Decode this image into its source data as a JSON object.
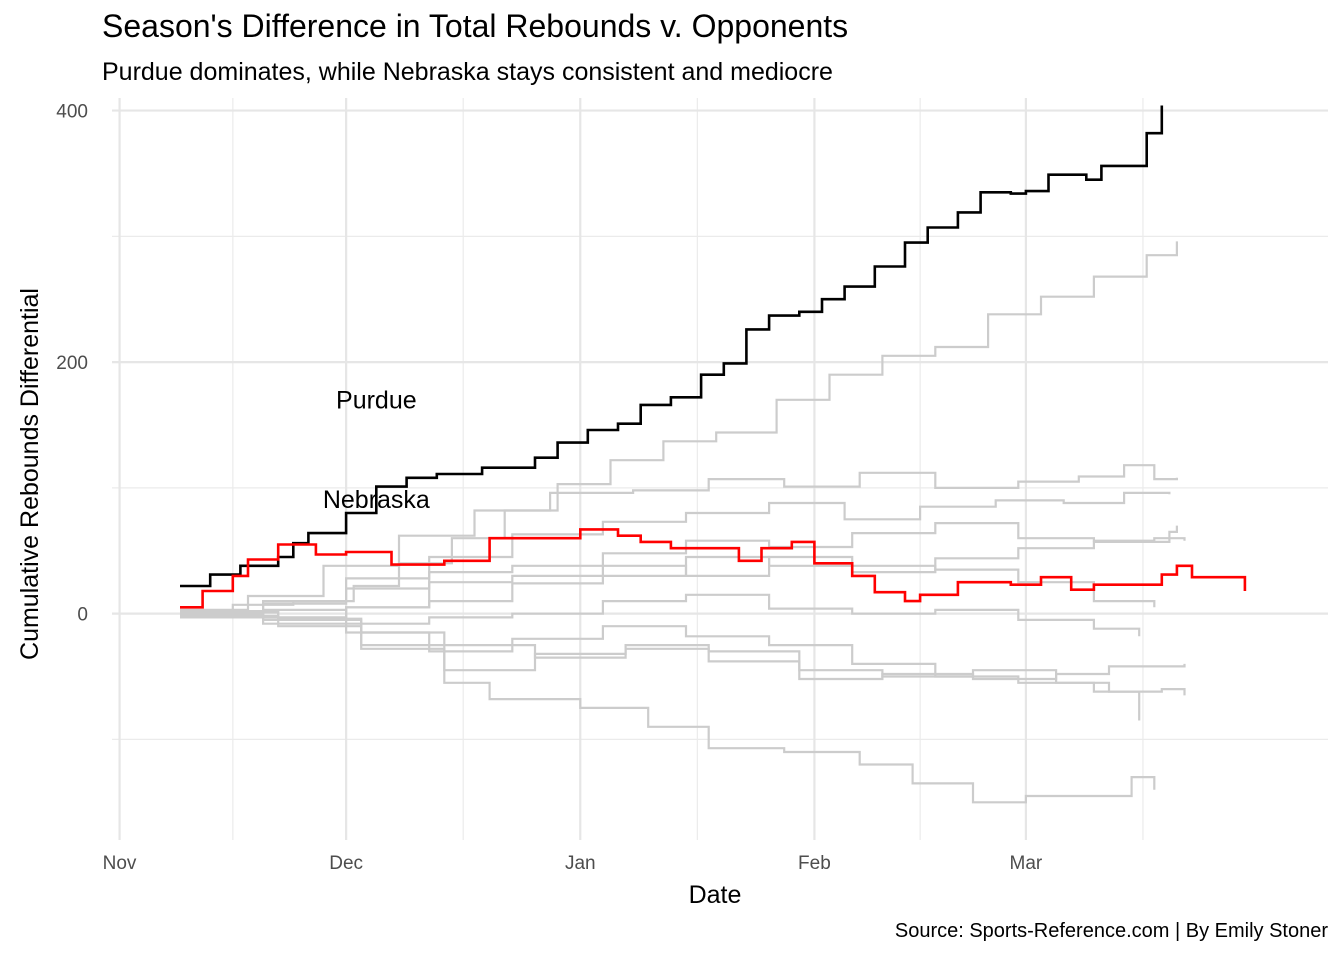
{
  "chart_data": {
    "type": "line",
    "title": "Season's Difference in Total Rebounds v. Opponents",
    "subtitle": "Purdue dominates, while Nebraska stays consistent and mediocre",
    "caption": "Source: Sports-Reference.com | By Emily Stoner",
    "xlabel": "Date",
    "ylabel": "Cumulative Rebounds Differential",
    "x_ticks": [
      "Nov",
      "Dec",
      "Jan",
      "Feb",
      "Mar"
    ],
    "y_ticks": [
      0,
      200,
      400
    ],
    "xlim": [
      "2021-10-31",
      "2022-04-10"
    ],
    "ylim": [
      -180,
      410
    ],
    "grid": true,
    "legend": "none",
    "annotations": [
      {
        "text": "Purdue",
        "x": "2021-12-05",
        "y": 163
      },
      {
        "text": "Nebraska",
        "x": "2021-12-05",
        "y": 84
      }
    ],
    "colors": {
      "Purdue": "#000000",
      "Nebraska": "#ff0000",
      "Other teams": "#cccccc"
    },
    "series": [
      {
        "name": "Purdue",
        "color": "#000000",
        "highlight": true,
        "points": [
          [
            "2021-11-09",
            22
          ],
          [
            "2021-11-13",
            31
          ],
          [
            "2021-11-17",
            38
          ],
          [
            "2021-11-22",
            45
          ],
          [
            "2021-11-24",
            56
          ],
          [
            "2021-11-26",
            64
          ],
          [
            "2021-12-01",
            80
          ],
          [
            "2021-12-05",
            101
          ],
          [
            "2021-12-09",
            108
          ],
          [
            "2021-12-13",
            111
          ],
          [
            "2021-12-19",
            116
          ],
          [
            "2021-12-26",
            124
          ],
          [
            "2021-12-29",
            136
          ],
          [
            "2022-01-02",
            146
          ],
          [
            "2022-01-06",
            151
          ],
          [
            "2022-01-09",
            166
          ],
          [
            "2022-01-13",
            172
          ],
          [
            "2022-01-17",
            190
          ],
          [
            "2022-01-20",
            199
          ],
          [
            "2022-01-23",
            226
          ],
          [
            "2022-01-26",
            237
          ],
          [
            "2022-01-30",
            240
          ],
          [
            "2022-02-02",
            250
          ],
          [
            "2022-02-05",
            260
          ],
          [
            "2022-02-09",
            276
          ],
          [
            "2022-02-13",
            295
          ],
          [
            "2022-02-16",
            307
          ],
          [
            "2022-02-20",
            319
          ],
          [
            "2022-02-23",
            335
          ],
          [
            "2022-02-27",
            334
          ],
          [
            "2022-03-01",
            336
          ],
          [
            "2022-03-04",
            349
          ],
          [
            "2022-03-09",
            345
          ],
          [
            "2022-03-11",
            356
          ],
          [
            "2022-03-17",
            382
          ],
          [
            "2022-03-19",
            404
          ]
        ]
      },
      {
        "name": "Nebraska",
        "color": "#ff0000",
        "highlight": true,
        "points": [
          [
            "2021-11-09",
            5
          ],
          [
            "2021-11-12",
            18
          ],
          [
            "2021-11-16",
            30
          ],
          [
            "2021-11-18",
            43
          ],
          [
            "2021-11-22",
            55
          ],
          [
            "2021-11-27",
            47
          ],
          [
            "2021-12-01",
            49
          ],
          [
            "2021-12-07",
            39
          ],
          [
            "2021-12-14",
            42
          ],
          [
            "2021-12-20",
            60
          ],
          [
            "2022-01-01",
            67
          ],
          [
            "2022-01-06",
            62
          ],
          [
            "2022-01-09",
            57
          ],
          [
            "2022-01-13",
            52
          ],
          [
            "2022-01-22",
            42
          ],
          [
            "2022-01-25",
            52
          ],
          [
            "2022-01-29",
            57
          ],
          [
            "2022-02-01",
            40
          ],
          [
            "2022-02-06",
            30
          ],
          [
            "2022-02-09",
            17
          ],
          [
            "2022-02-13",
            10
          ],
          [
            "2022-02-15",
            15
          ],
          [
            "2022-02-20",
            25
          ],
          [
            "2022-02-27",
            23
          ],
          [
            "2022-03-03",
            29
          ],
          [
            "2022-03-07",
            19
          ],
          [
            "2022-03-10",
            23
          ],
          [
            "2022-03-19",
            31
          ],
          [
            "2022-03-21",
            38
          ],
          [
            "2022-03-23",
            29
          ],
          [
            "2022-03-30",
            18
          ]
        ]
      },
      {
        "color": "#cccccc",
        "points": [
          [
            "2021-11-09",
            0
          ],
          [
            "2021-11-16",
            7
          ],
          [
            "2021-11-24",
            10
          ],
          [
            "2021-12-02",
            22
          ],
          [
            "2021-12-08",
            40
          ],
          [
            "2021-12-15",
            60
          ],
          [
            "2021-12-22",
            82
          ],
          [
            "2021-12-29",
            103
          ],
          [
            "2022-01-05",
            122
          ],
          [
            "2022-01-12",
            137
          ],
          [
            "2022-01-19",
            144
          ],
          [
            "2022-01-27",
            170
          ],
          [
            "2022-02-03",
            190
          ],
          [
            "2022-02-10",
            205
          ],
          [
            "2022-02-17",
            212
          ],
          [
            "2022-02-24",
            238
          ],
          [
            "2022-03-03",
            252
          ],
          [
            "2022-03-10",
            268
          ],
          [
            "2022-03-17",
            285
          ],
          [
            "2022-03-21",
            296
          ]
        ]
      },
      {
        "color": "#cccccc",
        "points": [
          [
            "2021-11-09",
            3
          ],
          [
            "2021-11-18",
            14
          ],
          [
            "2021-11-28",
            38
          ],
          [
            "2021-12-08",
            62
          ],
          [
            "2021-12-18",
            82
          ],
          [
            "2021-12-28",
            96
          ],
          [
            "2022-01-08",
            98
          ],
          [
            "2022-01-18",
            107
          ],
          [
            "2022-01-28",
            101
          ],
          [
            "2022-02-07",
            112
          ],
          [
            "2022-02-17",
            100
          ],
          [
            "2022-02-28",
            105
          ],
          [
            "2022-03-08",
            109
          ],
          [
            "2022-03-14",
            118
          ],
          [
            "2022-03-18",
            107
          ],
          [
            "2022-03-21",
            108
          ]
        ]
      },
      {
        "color": "#cccccc",
        "points": [
          [
            "2021-11-09",
            -3
          ],
          [
            "2021-11-20",
            10
          ],
          [
            "2021-12-01",
            28
          ],
          [
            "2021-12-12",
            45
          ],
          [
            "2021-12-23",
            63
          ],
          [
            "2022-01-04",
            73
          ],
          [
            "2022-01-15",
            80
          ],
          [
            "2022-01-26",
            88
          ],
          [
            "2022-02-05",
            75
          ],
          [
            "2022-02-15",
            85
          ],
          [
            "2022-02-25",
            90
          ],
          [
            "2022-03-06",
            88
          ],
          [
            "2022-03-14",
            96
          ],
          [
            "2022-03-20",
            95
          ]
        ]
      },
      {
        "color": "#cccccc",
        "points": [
          [
            "2021-11-09",
            -1
          ],
          [
            "2021-11-20",
            8
          ],
          [
            "2021-12-01",
            20
          ],
          [
            "2021-12-12",
            33
          ],
          [
            "2021-12-23",
            38
          ],
          [
            "2022-01-04",
            48
          ],
          [
            "2022-01-15",
            58
          ],
          [
            "2022-01-26",
            53
          ],
          [
            "2022-02-06",
            64
          ],
          [
            "2022-02-17",
            72
          ],
          [
            "2022-02-28",
            60
          ],
          [
            "2022-03-10",
            58
          ],
          [
            "2022-03-18",
            60
          ],
          [
            "2022-03-22",
            58
          ]
        ]
      },
      {
        "color": "#cccccc",
        "points": [
          [
            "2021-11-09",
            -3
          ],
          [
            "2021-11-20",
            -5
          ],
          [
            "2021-12-01",
            5
          ],
          [
            "2021-12-12",
            10
          ],
          [
            "2021-12-23",
            24
          ],
          [
            "2022-01-04",
            30
          ],
          [
            "2022-01-15",
            45
          ],
          [
            "2022-01-26",
            38
          ],
          [
            "2022-02-06",
            33
          ],
          [
            "2022-02-17",
            44
          ],
          [
            "2022-02-28",
            52
          ],
          [
            "2022-03-10",
            57
          ],
          [
            "2022-03-20",
            65
          ],
          [
            "2022-03-21",
            70
          ]
        ]
      },
      {
        "color": "#cccccc",
        "points": [
          [
            "2021-11-09",
            1
          ],
          [
            "2021-11-20",
            -3
          ],
          [
            "2021-12-01",
            5
          ],
          [
            "2021-12-12",
            25
          ],
          [
            "2021-12-23",
            30
          ],
          [
            "2022-01-04",
            38
          ],
          [
            "2022-01-15",
            30
          ],
          [
            "2022-01-26",
            45
          ],
          [
            "2022-02-06",
            38
          ],
          [
            "2022-02-17",
            35
          ],
          [
            "2022-02-28",
            25
          ],
          [
            "2022-03-10",
            10
          ],
          [
            "2022-03-18",
            5
          ]
        ]
      },
      {
        "color": "#cccccc",
        "points": [
          [
            "2021-11-09",
            0
          ],
          [
            "2021-11-20",
            3
          ],
          [
            "2021-12-01",
            -8
          ],
          [
            "2021-12-12",
            -3
          ],
          [
            "2021-12-23",
            0
          ],
          [
            "2022-01-04",
            10
          ],
          [
            "2022-01-15",
            15
          ],
          [
            "2022-01-26",
            4
          ],
          [
            "2022-02-06",
            0
          ],
          [
            "2022-02-17",
            3
          ],
          [
            "2022-02-28",
            -5
          ],
          [
            "2022-03-10",
            -12
          ],
          [
            "2022-03-16",
            -18
          ]
        ]
      },
      {
        "color": "#cccccc",
        "points": [
          [
            "2021-11-09",
            -1
          ],
          [
            "2021-11-20",
            -8
          ],
          [
            "2021-12-01",
            -15
          ],
          [
            "2021-12-12",
            -30
          ],
          [
            "2021-12-23",
            -20
          ],
          [
            "2022-01-04",
            -10
          ],
          [
            "2022-01-15",
            -18
          ],
          [
            "2022-01-26",
            -25
          ],
          [
            "2022-02-06",
            -40
          ],
          [
            "2022-02-17",
            -50
          ],
          [
            "2022-02-28",
            -55
          ],
          [
            "2022-03-10",
            -62
          ],
          [
            "2022-03-16",
            -85
          ]
        ]
      },
      {
        "color": "#cccccc",
        "points": [
          [
            "2021-11-09",
            1
          ],
          [
            "2021-11-22",
            -5
          ],
          [
            "2021-12-03",
            -25
          ],
          [
            "2021-12-14",
            -45
          ],
          [
            "2021-12-26",
            -32
          ],
          [
            "2022-01-07",
            -25
          ],
          [
            "2022-01-18",
            -38
          ],
          [
            "2022-01-30",
            -52
          ],
          [
            "2022-02-10",
            -48
          ],
          [
            "2022-02-22",
            -52
          ],
          [
            "2022-03-05",
            -48
          ],
          [
            "2022-03-12",
            -42
          ],
          [
            "2022-03-19",
            -42
          ],
          [
            "2022-03-22",
            -40
          ]
        ]
      },
      {
        "color": "#cccccc",
        "points": [
          [
            "2021-11-09",
            2
          ],
          [
            "2021-11-22",
            -4
          ],
          [
            "2021-12-03",
            -15
          ],
          [
            "2021-12-14",
            -25
          ],
          [
            "2021-12-26",
            -35
          ],
          [
            "2022-01-07",
            -28
          ],
          [
            "2022-01-18",
            -30
          ],
          [
            "2022-01-30",
            -45
          ],
          [
            "2022-02-10",
            -50
          ],
          [
            "2022-02-22",
            -45
          ],
          [
            "2022-03-05",
            -55
          ],
          [
            "2022-03-12",
            -62
          ],
          [
            "2022-03-19",
            -60
          ],
          [
            "2022-03-22",
            -65
          ]
        ]
      },
      {
        "color": "#cccccc",
        "points": [
          [
            "2021-11-09",
            -2
          ],
          [
            "2021-11-22",
            -10
          ],
          [
            "2021-12-03",
            -28
          ],
          [
            "2021-12-14",
            -55
          ],
          [
            "2021-12-20",
            -68
          ],
          [
            "2022-01-01",
            -75
          ],
          [
            "2022-01-10",
            -90
          ],
          [
            "2022-01-18",
            -107
          ],
          [
            "2022-01-28",
            -110
          ],
          [
            "2022-02-07",
            -120
          ],
          [
            "2022-02-14",
            -135
          ],
          [
            "2022-02-22",
            -150
          ],
          [
            "2022-03-01",
            -145
          ],
          [
            "2022-03-08",
            -145
          ],
          [
            "2022-03-15",
            -130
          ],
          [
            "2022-03-18",
            -140
          ]
        ]
      }
    ]
  }
}
